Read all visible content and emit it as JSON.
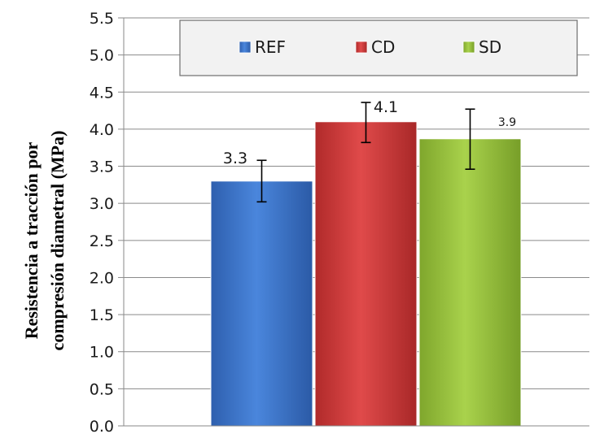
{
  "chart_data": {
    "type": "bar",
    "title": "",
    "xlabel": "",
    "ylabel_line1": "Resistencia a tracción por",
    "ylabel_line2": "compresión diametral (MPa)",
    "ylim": [
      0,
      5.5
    ],
    "yticks": [
      "0.0",
      "0.5",
      "1.0",
      "1.5",
      "2.0",
      "2.5",
      "3.0",
      "3.5",
      "4.0",
      "4.5",
      "5.0",
      "5.5"
    ],
    "grid": true,
    "legend_position": "top",
    "series": [
      {
        "name": "REF",
        "value": 3.3,
        "error_low": 3.02,
        "error_high": 3.58,
        "data_label": "3.3",
        "color": "#3a73c9"
      },
      {
        "name": "CD",
        "value": 4.1,
        "error_low": 3.82,
        "error_high": 4.36,
        "data_label": "4.1",
        "color": "#cf3b3b"
      },
      {
        "name": "SD",
        "value": 3.87,
        "error_low": 3.46,
        "error_high": 4.27,
        "data_label": "3.9",
        "color": "#99c23e"
      }
    ]
  }
}
